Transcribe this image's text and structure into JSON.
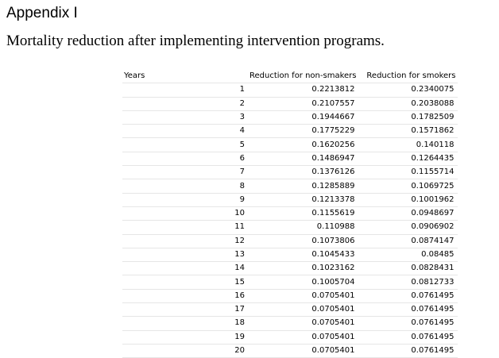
{
  "heading": "Appendix I",
  "subheading": "Mortality reduction after implementing intervention programs.",
  "table": {
    "columns": [
      "Years",
      "Reduction for non-smakers",
      "Reduction for smokers"
    ],
    "rows": [
      [
        "1",
        "0.2213812",
        "0.2340075"
      ],
      [
        "2",
        "0.2107557",
        "0.2038088"
      ],
      [
        "3",
        "0.1944667",
        "0.1782509"
      ],
      [
        "4",
        "0.1775229",
        "0.1571862"
      ],
      [
        "5",
        "0.1620256",
        "0.140118"
      ],
      [
        "6",
        "0.1486947",
        "0.1264435"
      ],
      [
        "7",
        "0.1376126",
        "0.1155714"
      ],
      [
        "8",
        "0.1285889",
        "0.1069725"
      ],
      [
        "9",
        "0.1213378",
        "0.1001962"
      ],
      [
        "10",
        "0.1155619",
        "0.0948697"
      ],
      [
        "11",
        "0.110988",
        "0.0906902"
      ],
      [
        "12",
        "0.1073806",
        "0.0874147"
      ],
      [
        "13",
        "0.1045433",
        "0.08485"
      ],
      [
        "14",
        "0.1023162",
        "0.0828431"
      ],
      [
        "15",
        "0.1005704",
        "0.0812733"
      ],
      [
        "16",
        "0.0705401",
        "0.0761495"
      ],
      [
        "17",
        "0.0705401",
        "0.0761495"
      ],
      [
        "18",
        "0.0705401",
        "0.0761495"
      ],
      [
        "19",
        "0.0705401",
        "0.0761495"
      ],
      [
        "20",
        "0.0705401",
        "0.0761495"
      ]
    ]
  }
}
